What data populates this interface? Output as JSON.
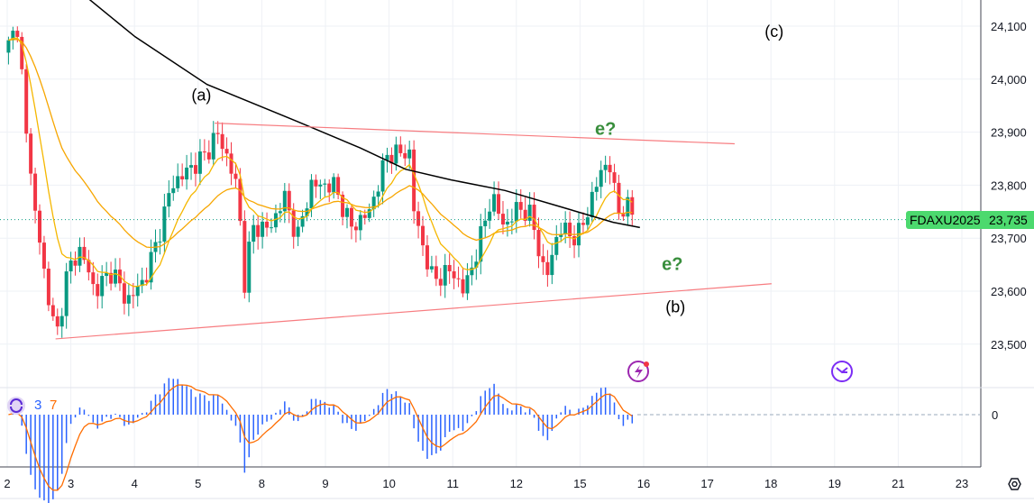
{
  "chart_data": {
    "type": "candlestick",
    "symbol": "FDAXU2025",
    "last_price": "23,735",
    "y_ticks": [
      "24,100",
      "24,000",
      "23,900",
      "23,800",
      "23,700",
      "23,600",
      "23,500"
    ],
    "y_tick_values": [
      24100,
      24000,
      23900,
      23800,
      23700,
      23600,
      23500
    ],
    "ylim": [
      23450,
      24150
    ],
    "x_ticks": [
      "2",
      "3",
      "4",
      "5",
      "8",
      "9",
      "10",
      "11",
      "12",
      "15",
      "16",
      "17",
      "18",
      "19",
      "21",
      "23"
    ],
    "price_path": [
      [
        0,
        24050
      ],
      [
        0.1,
        24120
      ],
      [
        0.24,
        24000
      ],
      [
        0.38,
        23800
      ],
      [
        0.6,
        23620
      ],
      [
        0.77,
        23510
      ],
      [
        0.95,
        23640
      ],
      [
        1.16,
        23680
      ],
      [
        1.37,
        23600
      ],
      [
        1.66,
        23640
      ],
      [
        1.87,
        23580
      ],
      [
        2.15,
        23620
      ],
      [
        2.37,
        23700
      ],
      [
        2.58,
        23800
      ],
      [
        2.86,
        23830
      ],
      [
        3.14,
        23860
      ],
      [
        3.29,
        23900
      ],
      [
        3.5,
        23840
      ],
      [
        3.64,
        23780
      ],
      [
        3.71,
        23600
      ],
      [
        3.85,
        23720
      ],
      [
        4.14,
        23720
      ],
      [
        4.35,
        23780
      ],
      [
        4.56,
        23700
      ],
      [
        4.77,
        23800
      ],
      [
        5.13,
        23800
      ],
      [
        5.41,
        23720
      ],
      [
        5.69,
        23750
      ],
      [
        5.98,
        23860
      ],
      [
        6.33,
        23860
      ],
      [
        6.4,
        23740
      ],
      [
        6.69,
        23620
      ],
      [
        6.97,
        23640
      ],
      [
        7.18,
        23600
      ],
      [
        7.39,
        23680
      ],
      [
        7.61,
        23780
      ],
      [
        7.82,
        23720
      ],
      [
        8.03,
        23760
      ],
      [
        8.24,
        23740
      ],
      [
        8.46,
        23620
      ],
      [
        8.67,
        23720
      ],
      [
        8.95,
        23700
      ],
      [
        9.09,
        23740
      ],
      [
        9.31,
        23820
      ],
      [
        9.45,
        23850
      ],
      [
        9.59,
        23750
      ],
      [
        9.73,
        23760
      ],
      [
        9.89,
        23740
      ]
    ],
    "long_ma": [
      [
        1.09,
        24170
      ],
      [
        2.01,
        24080
      ],
      [
        3.14,
        23990
      ],
      [
        4.56,
        23920
      ],
      [
        5.55,
        23870
      ],
      [
        6.26,
        23830
      ],
      [
        6.97,
        23810
      ],
      [
        7.82,
        23790
      ],
      [
        8.67,
        23760
      ],
      [
        9.52,
        23730
      ],
      [
        9.94,
        23720
      ]
    ],
    "trendlines": [
      {
        "from": [
          3.26,
          23917
        ],
        "to": [
          11.43,
          23878
        ]
      },
      {
        "from": [
          0.76,
          23510
        ],
        "to": [
          12.01,
          23614
        ]
      }
    ],
    "annotations": [
      {
        "text": "(a)",
        "t": 3.05,
        "p": 23960
      },
      {
        "text": "(b)",
        "t": 10.5,
        "p": 23560
      },
      {
        "text": "(c)",
        "t": 12.05,
        "p": 24080
      }
    ],
    "e_labels": [
      {
        "text": "e?",
        "t": 9.4,
        "p": 23895
      },
      {
        "text": "e?",
        "t": 10.45,
        "p": 23640
      }
    ],
    "indicator": {
      "params": [
        "3",
        "7"
      ],
      "zero_label": "0"
    }
  },
  "colors": {
    "up": "#089981",
    "down": "#f23645",
    "ma_long": "#000000",
    "ma_short": "#f7a600",
    "ma_mid": "#f5b700",
    "trend": "#f77c80",
    "hist": "#2962ff",
    "signal": "#ff6d00",
    "tag": "#4cd96e"
  }
}
